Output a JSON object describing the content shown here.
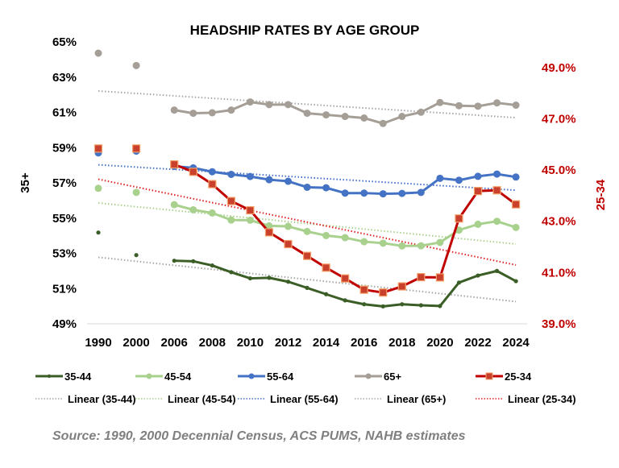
{
  "chart_data": {
    "type": "line",
    "title": "HEADSHIP RATES BY AGE GROUP",
    "ylabel": "35+",
    "y2label": "25-34",
    "categories": [
      "1990",
      "2000",
      "2006",
      "2007",
      "2008",
      "2009",
      "2010",
      "2011",
      "2012",
      "2013",
      "2014",
      "2015",
      "2016",
      "2017",
      "2018",
      "2019",
      "2020",
      "2021",
      "2022",
      "2023",
      "2024"
    ],
    "x_tick_labels": [
      "1990",
      "2000",
      "2006",
      "2008",
      "2010",
      "2012",
      "2014",
      "2016",
      "2018",
      "2020",
      "2022",
      "2024"
    ],
    "ylim": [
      49,
      65
    ],
    "y_ticks": [
      "49%",
      "51%",
      "53%",
      "55%",
      "57%",
      "59%",
      "61%",
      "63%",
      "65%"
    ],
    "y2lim": [
      39,
      50
    ],
    "y2_ticks": [
      "39.0%",
      "41.0%",
      "43.0%",
      "45.0%",
      "47.0%",
      "49.0%"
    ],
    "grid": false,
    "legend_position": "bottom",
    "series": [
      {
        "name": "35-44",
        "axis": "left",
        "color": "#3b5e26",
        "marker": "small-circle",
        "values": [
          54.18,
          52.9,
          52.58,
          52.55,
          52.31,
          51.93,
          51.58,
          51.61,
          51.39,
          51.04,
          50.68,
          50.33,
          50.11,
          49.99,
          50.11,
          50.05,
          50.01,
          51.34,
          51.74,
          52.0,
          51.42
        ]
      },
      {
        "name": "45-54",
        "axis": "left",
        "color": "#a9d18e",
        "marker": "circle",
        "values": [
          56.69,
          56.46,
          55.76,
          55.47,
          55.29,
          54.89,
          54.88,
          54.56,
          54.53,
          54.24,
          54.01,
          53.89,
          53.66,
          53.58,
          53.42,
          53.43,
          53.62,
          54.32,
          54.65,
          54.82,
          54.47
        ]
      },
      {
        "name": "55-64",
        "axis": "left",
        "color": "#4472c4",
        "marker": "circle",
        "values": [
          58.7,
          58.8,
          57.94,
          57.85,
          57.63,
          57.48,
          57.36,
          57.18,
          57.09,
          56.75,
          56.72,
          56.42,
          56.42,
          56.38,
          56.4,
          56.46,
          57.26,
          57.15,
          57.37,
          57.5,
          57.33
        ]
      },
      {
        "name": "65+",
        "axis": "left",
        "color": "#a59e96",
        "marker": "circle",
        "values": [
          64.36,
          63.66,
          61.13,
          60.95,
          60.98,
          61.13,
          61.59,
          61.44,
          61.44,
          60.95,
          60.86,
          60.77,
          60.68,
          60.37,
          60.77,
          61.01,
          61.56,
          61.38,
          61.35,
          61.54,
          61.41
        ]
      },
      {
        "name": "25-34",
        "axis": "right",
        "color": "#c00000",
        "marker": "square",
        "values": [
          45.84,
          45.84,
          45.22,
          44.93,
          44.45,
          43.79,
          43.43,
          42.57,
          42.11,
          41.65,
          41.19,
          40.77,
          40.33,
          40.22,
          40.46,
          40.82,
          40.81,
          43.11,
          44.18,
          44.21,
          43.66
        ]
      }
    ],
    "trendlines": [
      {
        "name": "Linear (35-44)",
        "of": "35-44",
        "color": "#a6a6a6"
      },
      {
        "name": "Linear (45-54)",
        "of": "45-54",
        "color": "#a9d18e"
      },
      {
        "name": "Linear (55-64)",
        "of": "55-64",
        "color": "#4472c4"
      },
      {
        "name": "Linear (65+)",
        "of": "65+",
        "color": "#a6a6a6"
      },
      {
        "name": "Linear (25-34)",
        "of": "25-34",
        "color": "#e02020"
      }
    ],
    "source": "Source: 1990, 2000 Decennial Census, ACS PUMS, NAHB estimates"
  }
}
